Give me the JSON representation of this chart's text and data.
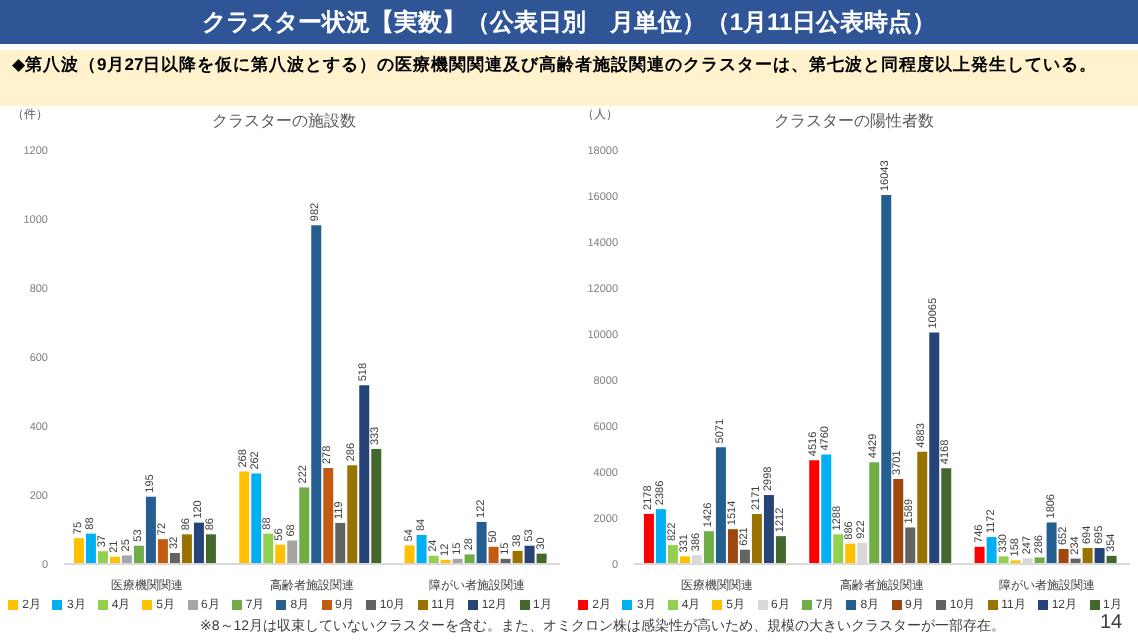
{
  "chart_data": [
    {
      "type": "bar",
      "title": "クラスターの施設数",
      "ylabel": "（件）",
      "annotations": [
        "クラスター状況【実数】（公表日別　月単位）（1月11日公表時点）",
        "◆第八波（9月27日以降を仮に第八波とする）の医療機関関連及び高齢者施設関連のクラスターは、第七波と同程度以上発生している。"
      ],
      "categories": [
        "医療機関関連",
        "高齢者施設関連",
        "障がい者施設関連"
      ],
      "ylim": [
        0,
        1200
      ],
      "yticks": [
        0,
        200,
        400,
        600,
        800,
        1000,
        1200
      ],
      "data_labels": true,
      "legend": "bottom",
      "series": [
        {
          "name": "2月",
          "color": "#ffc000",
          "values": [
            75,
            268,
            54
          ]
        },
        {
          "name": "3月",
          "color": "#00b0f0",
          "values": [
            88,
            262,
            84
          ]
        },
        {
          "name": "4月",
          "color": "#92d050",
          "values": [
            37,
            88,
            24
          ]
        },
        {
          "name": "5月",
          "color": "#ffc000",
          "values": [
            21,
            56,
            12
          ]
        },
        {
          "name": "6月",
          "color": "#a5a5a5",
          "values": [
            25,
            68,
            15
          ]
        },
        {
          "name": "7月",
          "color": "#70ad47",
          "values": [
            53,
            222,
            28
          ]
        },
        {
          "name": "8月",
          "color": "#255e91",
          "values": [
            195,
            982,
            122
          ]
        },
        {
          "name": "9月",
          "color": "#c55a11",
          "values": [
            72,
            278,
            50
          ]
        },
        {
          "name": "10月",
          "color": "#636363",
          "values": [
            32,
            119,
            15
          ]
        },
        {
          "name": "11月",
          "color": "#997300",
          "values": [
            86,
            286,
            38
          ]
        },
        {
          "name": "12月",
          "color": "#264478",
          "values": [
            120,
            518,
            53
          ]
        },
        {
          "name": "1月",
          "color": "#43682b",
          "values": [
            86,
            333,
            30
          ]
        }
      ]
    },
    {
      "type": "bar",
      "title": "クラスターの陽性者数",
      "ylabel": "（人）",
      "annotations": [
        "※8～12月は収束していないクラスターを含む。また、オミクロン株は感染性が高いため、規模の大きいクラスターが一部存在。",
        "14"
      ],
      "categories": [
        "医療機関関連",
        "高齢者施設関連",
        "障がい者施設関連"
      ],
      "ylim": [
        0,
        18000
      ],
      "yticks": [
        0,
        2000,
        4000,
        6000,
        8000,
        10000,
        12000,
        14000,
        16000,
        18000
      ],
      "data_labels": true,
      "legend": "bottom",
      "series": [
        {
          "name": "2月",
          "color": "#ff0000",
          "values": [
            2178,
            4516,
            746
          ]
        },
        {
          "name": "3月",
          "color": "#00b0f0",
          "values": [
            2386,
            4760,
            1172
          ]
        },
        {
          "name": "4月",
          "color": "#92d050",
          "values": [
            822,
            1288,
            330
          ]
        },
        {
          "name": "5月",
          "color": "#ffc000",
          "values": [
            331,
            886,
            158
          ]
        },
        {
          "name": "6月",
          "color": "#d9d9d9",
          "values": [
            386,
            922,
            247
          ]
        },
        {
          "name": "7月",
          "color": "#70ad47",
          "values": [
            1426,
            4429,
            286
          ]
        },
        {
          "name": "8月",
          "color": "#255e91",
          "values": [
            5071,
            16043,
            1806
          ]
        },
        {
          "name": "9月",
          "color": "#9e480e",
          "values": [
            1514,
            3701,
            652
          ]
        },
        {
          "name": "10月",
          "color": "#636363",
          "values": [
            621,
            1589,
            234
          ]
        },
        {
          "name": "11月",
          "color": "#997300",
          "values": [
            2171,
            4883,
            694
          ]
        },
        {
          "name": "12月",
          "color": "#264478",
          "values": [
            2998,
            10065,
            695
          ]
        },
        {
          "name": "1月",
          "color": "#43682b",
          "values": [
            1212,
            4168,
            354
          ]
        }
      ]
    }
  ]
}
